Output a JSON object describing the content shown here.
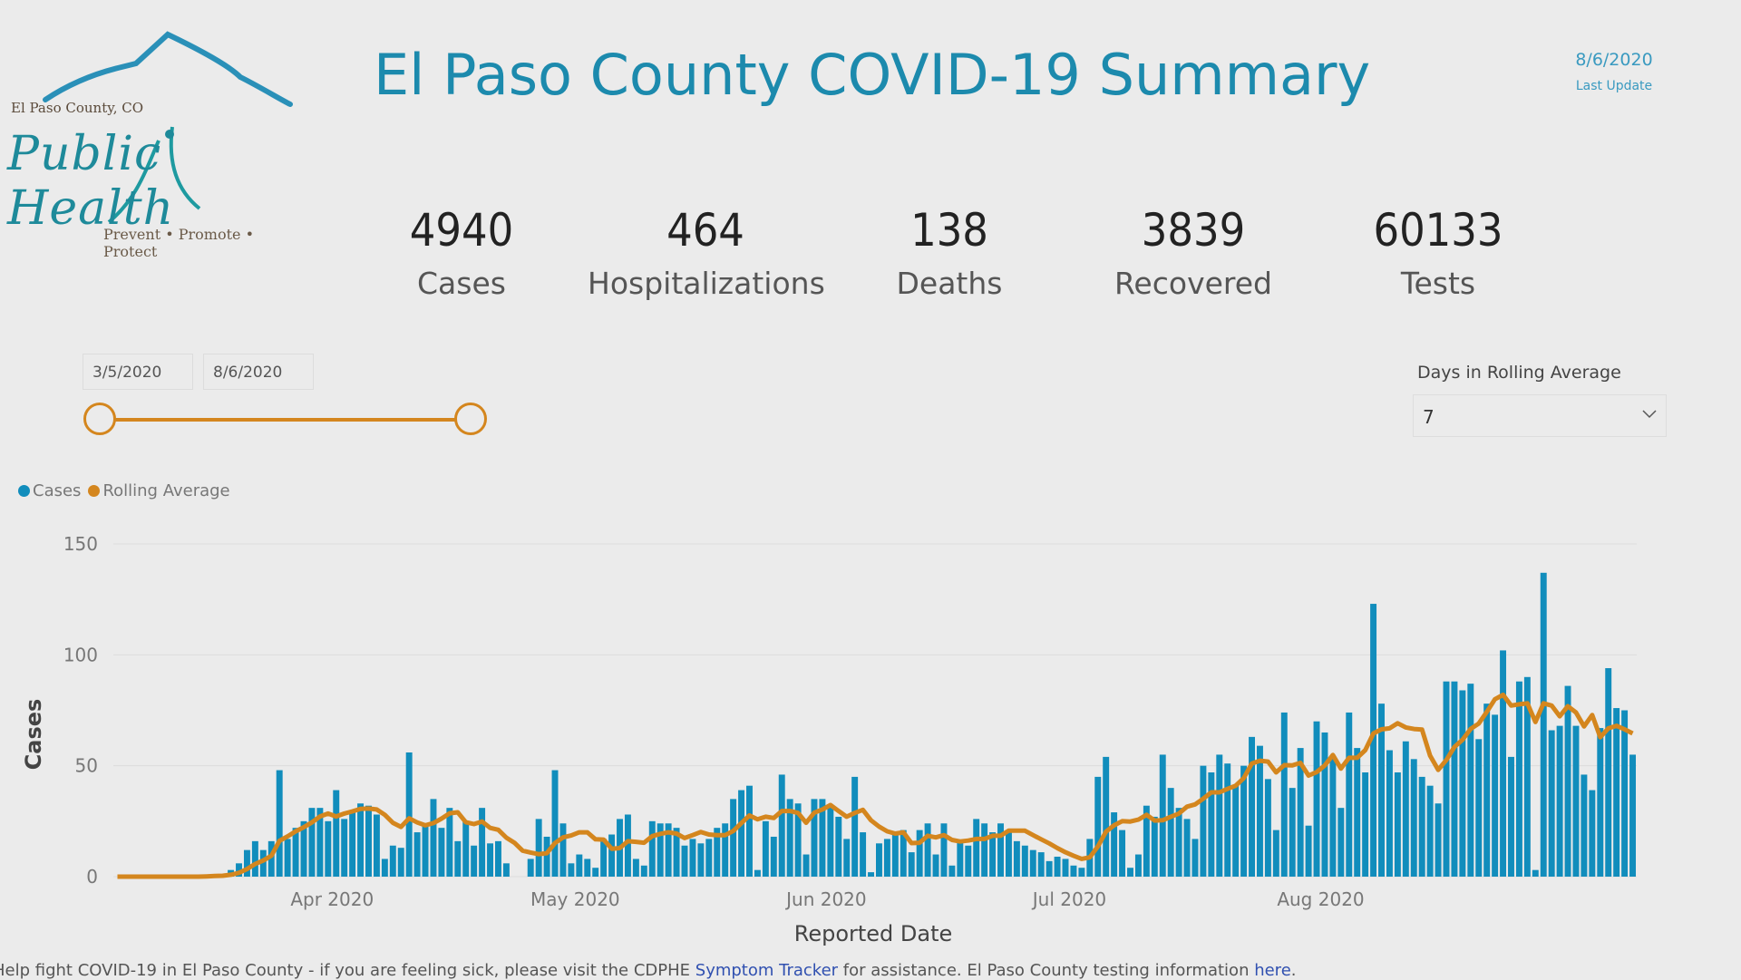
{
  "logo": {
    "county": "El Paso County, CO",
    "name": "Public Health",
    "tagline": "Prevent • Promote • Protect"
  },
  "header": {
    "title": "El Paso County COVID-19 Summary",
    "update_date": "8/6/2020",
    "update_label": "Last Update"
  },
  "kpis": [
    {
      "value": "4940",
      "label": "Cases"
    },
    {
      "value": "464",
      "label": "Hospitalizations"
    },
    {
      "value": "138",
      "label": "Deaths"
    },
    {
      "value": "3839",
      "label": "Recovered"
    },
    {
      "value": "60133",
      "label": "Tests"
    }
  ],
  "date_range": {
    "start": "3/5/2020",
    "end": "8/6/2020",
    "start_fraction": 0,
    "end_fraction": 1
  },
  "rolling": {
    "label": "Days in Rolling Average",
    "value": "7"
  },
  "colors": {
    "accent": "#1c8aad",
    "bar": "#118dbc",
    "line": "#d4861e"
  },
  "footer": {
    "text1": "Help fight COVID-19 in El Paso County - if you are feeling sick, please visit the CDPHE ",
    "link1": "Symptom Tracker",
    "text2": " for assistance. El Paso County testing information ",
    "link2": "here",
    "text3": "."
  },
  "chart_data": {
    "type": "bar",
    "title": "",
    "xlabel": "Reported Date",
    "ylabel": "Cases",
    "ylim": [
      0,
      150
    ],
    "yticks": [
      "0",
      "50",
      "100",
      "150"
    ],
    "xticks": [
      {
        "label": "Apr 2020",
        "day": 27
      },
      {
        "label": "May 2020",
        "day": 57
      },
      {
        "label": "Jun 2020",
        "day": 88
      },
      {
        "label": "Jul 2020",
        "day": 118
      },
      {
        "label": "Aug 2020",
        "day": 149
      }
    ],
    "x_start": "2020-03-05",
    "x_end": "2020-08-06",
    "legend": [
      {
        "name": "Cases",
        "color": "#118dbc"
      },
      {
        "name": "Rolling Average",
        "color": "#d4861e"
      }
    ],
    "legend_position": "top-left",
    "grid": true,
    "series": [
      {
        "name": "Cases",
        "values": [
          0,
          0,
          0,
          0,
          0,
          0,
          0,
          0,
          0,
          0,
          0,
          1,
          1,
          1,
          3,
          6,
          12,
          16,
          12,
          16,
          48,
          17,
          22,
          25,
          31,
          31,
          25,
          39,
          26,
          29,
          33,
          32,
          28,
          8,
          14,
          13,
          56,
          20,
          23,
          35,
          22,
          31,
          16,
          25,
          14,
          31,
          15,
          16,
          6,
          0,
          0,
          8,
          26,
          18,
          48,
          24,
          6,
          10,
          8,
          4,
          17,
          19,
          26,
          28,
          8,
          5,
          25,
          24,
          24,
          22,
          14,
          17,
          15,
          17,
          22,
          24,
          35,
          39,
          41,
          3,
          25,
          18,
          46,
          35,
          33,
          10,
          35,
          35,
          32,
          27,
          17,
          45,
          20,
          2,
          15,
          17,
          20,
          21,
          11,
          21,
          24,
          10,
          24,
          5,
          16,
          14,
          26,
          24,
          20,
          24,
          21,
          16,
          14,
          12,
          11,
          7,
          9,
          8,
          5,
          4,
          17,
          45,
          54,
          29,
          21,
          4,
          10,
          32,
          27,
          55,
          40,
          31,
          26,
          17,
          50,
          47,
          55,
          51,
          41,
          50,
          63,
          59,
          44,
          21,
          74,
          40,
          58,
          23,
          70,
          65,
          54,
          31,
          74,
          58,
          47,
          123,
          78,
          57,
          47,
          61,
          53,
          45,
          41,
          33,
          88,
          88,
          84,
          87,
          62,
          78,
          73,
          102,
          54,
          88,
          90,
          3,
          137,
          66,
          68,
          86,
          68,
          46,
          39,
          67,
          94,
          76,
          75,
          55
        ]
      }
    ]
  }
}
